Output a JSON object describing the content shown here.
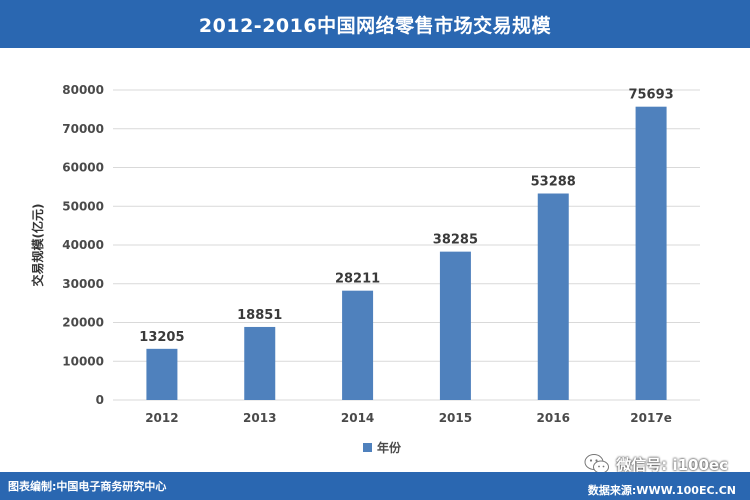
{
  "title": "2012-2016中国网络零售市场交易规模",
  "footer": {
    "left": "图表编制:中国电子商务研究中心",
    "right": "数据来源:WWW.100EC.CN"
  },
  "watermark": {
    "text": "微信号: i100ec",
    "icon": "wechat-icon"
  },
  "colors": {
    "header": "#2a67b1",
    "bar": "#4f81bd",
    "gridline": "#d9d9d9"
  },
  "chart_data": {
    "type": "bar",
    "categories": [
      "2012",
      "2013",
      "2014",
      "2015",
      "2016",
      "2017e"
    ],
    "series": [
      {
        "name": "年份",
        "values": [
          13205,
          18851,
          28211,
          38285,
          53288,
          75693
        ]
      }
    ],
    "ylabel": "交易规模(亿元)",
    "xlabel": "",
    "ylim": [
      0,
      80000
    ],
    "yticks": [
      0,
      10000,
      20000,
      30000,
      40000,
      50000,
      60000,
      70000,
      80000
    ],
    "grid": true,
    "legend": "bottom",
    "data_labels": true
  }
}
